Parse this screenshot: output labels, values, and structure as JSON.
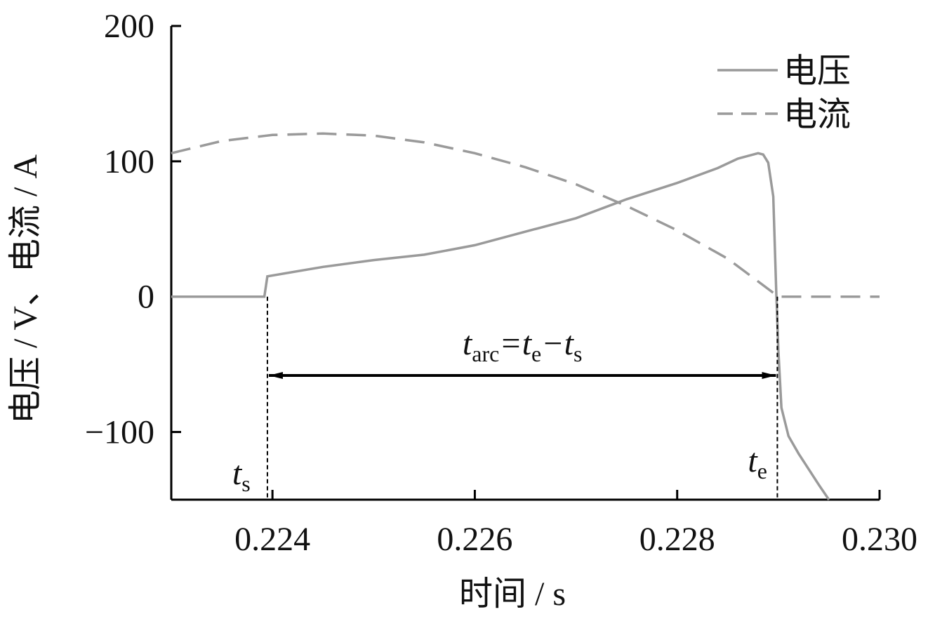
{
  "chart_data": {
    "type": "line",
    "x_label": "时间 / s",
    "y_label": "电压 / V、电流 / A",
    "xlim": [
      0.223,
      0.23
    ],
    "xticks": [
      0.224,
      0.226,
      0.228,
      {
        "value": 0.23,
        "label": "0.230"
      }
    ],
    "ylim": [
      -150,
      200
    ],
    "yticks": [
      200,
      100,
      0,
      {
        "value": -100,
        "label": "−100"
      }
    ],
    "legend": "upper right",
    "series": [
      {
        "name": "电压",
        "color": "#9a9a9a",
        "dash": false,
        "x": [
          0.223,
          0.2235,
          0.22392,
          0.22395,
          0.2245,
          0.225,
          0.2255,
          0.226,
          0.2265,
          0.227,
          0.2275,
          0.228,
          0.2284,
          0.2286,
          0.2288,
          0.22885,
          0.2289,
          0.22895,
          0.22898,
          0.229,
          0.22903,
          0.2291,
          0.2292,
          0.2294,
          0.2295
        ],
        "values": [
          0,
          0,
          0,
          15,
          22,
          27,
          31,
          38,
          48,
          58,
          72,
          84,
          95,
          102,
          106,
          105,
          99,
          74,
          1,
          -40,
          -82,
          -103,
          -116,
          -139,
          -150
        ]
      },
      {
        "name": "电流",
        "color": "#9a9a9a",
        "dash": true,
        "x": [
          0.223,
          0.2235,
          0.224,
          0.2245,
          0.225,
          0.2255,
          0.226,
          0.2265,
          0.227,
          0.2275,
          0.228,
          0.2285,
          0.229,
          0.2295,
          0.23
        ],
        "values": [
          106,
          115,
          119.5,
          120.5,
          119,
          114,
          106,
          95.6,
          83,
          67,
          49,
          28,
          0,
          0,
          0
        ]
      }
    ],
    "annotations": [
      {
        "x": 0.22395,
        "parts": [
          {
            "text": "t",
            "sub": "s"
          }
        ]
      },
      {
        "x": 0.22899,
        "parts": [
          {
            "text": "t",
            "sub": "e"
          }
        ]
      },
      {
        "parts": [
          {
            "text": "t",
            "sub": "arc"
          },
          {
            "text": "=t",
            "sub": "e"
          },
          {
            "text": "−t",
            "sub": "s"
          }
        ]
      }
    ]
  }
}
